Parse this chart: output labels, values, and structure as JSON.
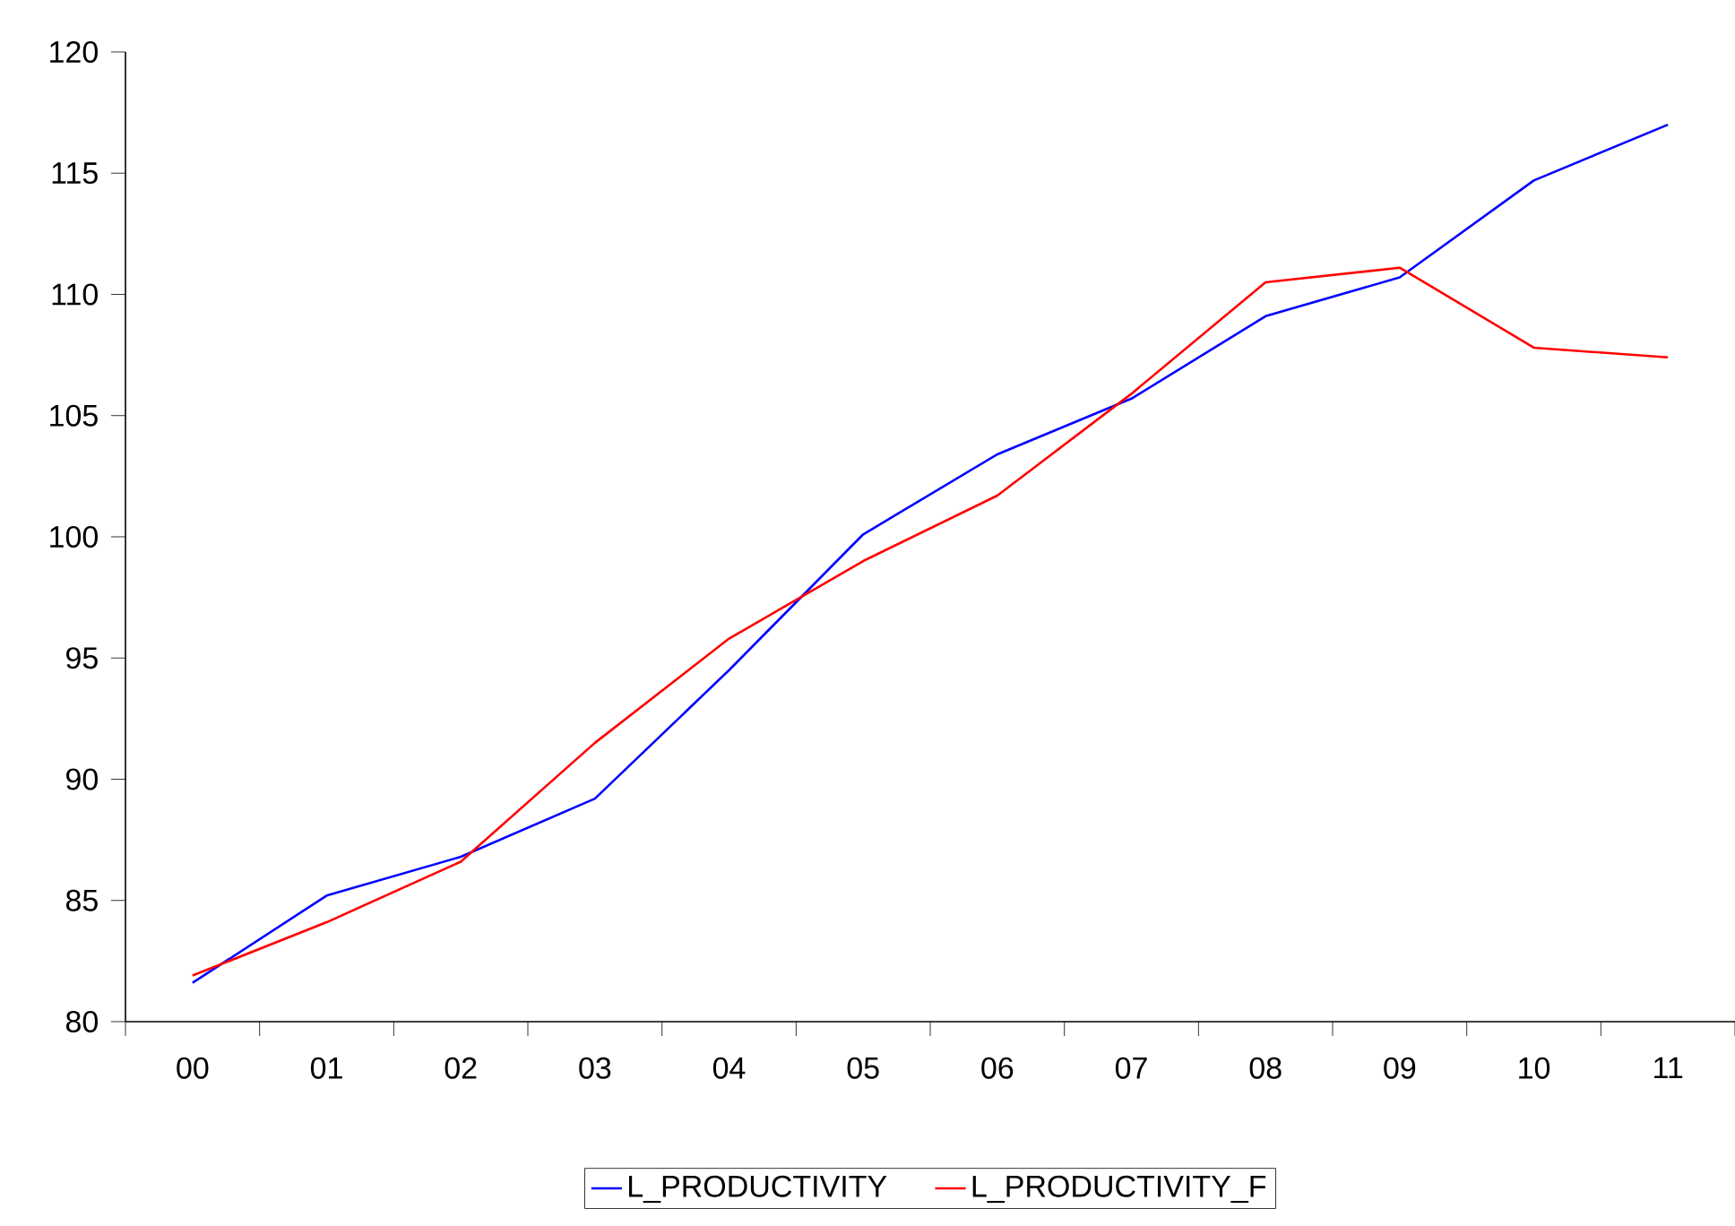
{
  "chart_data": {
    "type": "line",
    "categories": [
      "00",
      "01",
      "02",
      "03",
      "04",
      "05",
      "06",
      "07",
      "08",
      "09",
      "10",
      "11"
    ],
    "series": [
      {
        "name": "L_PRODUCTIVITY",
        "color": "#0000ff",
        "values": [
          81.6,
          85.2,
          86.8,
          89.2,
          94.5,
          100.1,
          103.4,
          105.7,
          109.1,
          110.7,
          114.7,
          117.0
        ]
      },
      {
        "name": "L_PRODUCTIVITY_F",
        "color": "#ff0000",
        "values": [
          81.9,
          84.1,
          86.6,
          91.5,
          95.8,
          99.0,
          101.7,
          105.9,
          110.5,
          111.1,
          107.8,
          107.4
        ]
      }
    ],
    "ylim": [
      80,
      120
    ],
    "yticks": [
      80,
      85,
      90,
      95,
      100,
      105,
      110,
      115,
      120
    ],
    "grid": false,
    "legend": "bottom",
    "marker": "none",
    "line_style": "solid"
  }
}
